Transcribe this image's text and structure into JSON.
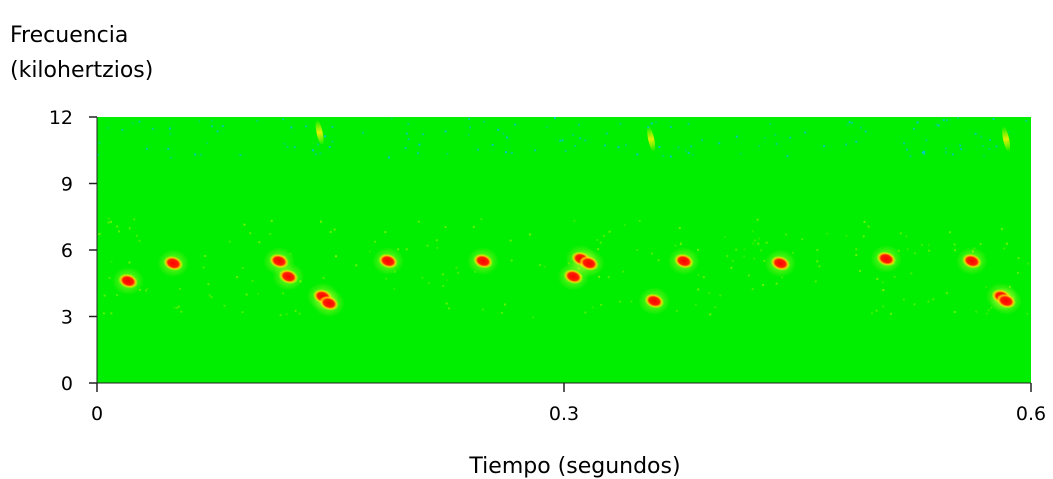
{
  "chart_data": {
    "type": "heatmap",
    "subtype": "spectrogram",
    "ylabel_line1": "Frecuencia",
    "ylabel_line2": "(kilohertzios)",
    "xlabel": "Tiempo (segundos)",
    "xlim": [
      0,
      0.6
    ],
    "ylim": [
      0,
      12
    ],
    "x_ticks": [
      0,
      0.3,
      0.6
    ],
    "x_tick_labels": [
      "0",
      "0.3",
      "0.6"
    ],
    "y_ticks": [
      0,
      3,
      6,
      9,
      12
    ],
    "y_tick_labels": [
      "0",
      "3",
      "6",
      "9",
      "12"
    ],
    "grid": false,
    "background_color": "#00ee00",
    "colors": {
      "low": "#00ee00",
      "mid": "#ffff00",
      "high": "#ff0000",
      "noise": "#00c8e0"
    },
    "calls": [
      {
        "t": 0.02,
        "f": 4.6
      },
      {
        "t": 0.049,
        "f": 5.4
      },
      {
        "t": 0.117,
        "f": 5.5
      },
      {
        "t": 0.123,
        "f": 4.8
      },
      {
        "t": 0.145,
        "f": 3.9
      },
      {
        "t": 0.149,
        "f": 3.6
      },
      {
        "t": 0.187,
        "f": 5.5
      },
      {
        "t": 0.248,
        "f": 5.5
      },
      {
        "t": 0.306,
        "f": 4.8
      },
      {
        "t": 0.311,
        "f": 5.6
      },
      {
        "t": 0.316,
        "f": 5.4
      },
      {
        "t": 0.358,
        "f": 3.7
      },
      {
        "t": 0.377,
        "f": 5.5
      },
      {
        "t": 0.439,
        "f": 5.4
      },
      {
        "t": 0.507,
        "f": 5.6
      },
      {
        "t": 0.562,
        "f": 5.5
      },
      {
        "t": 0.581,
        "f": 3.9
      },
      {
        "t": 0.584,
        "f": 3.7
      }
    ],
    "high_freq_streaks": [
      {
        "t": 0.143,
        "f": 11.3
      },
      {
        "t": 0.356,
        "f": 11.0
      },
      {
        "t": 0.584,
        "f": 11.0
      }
    ]
  }
}
